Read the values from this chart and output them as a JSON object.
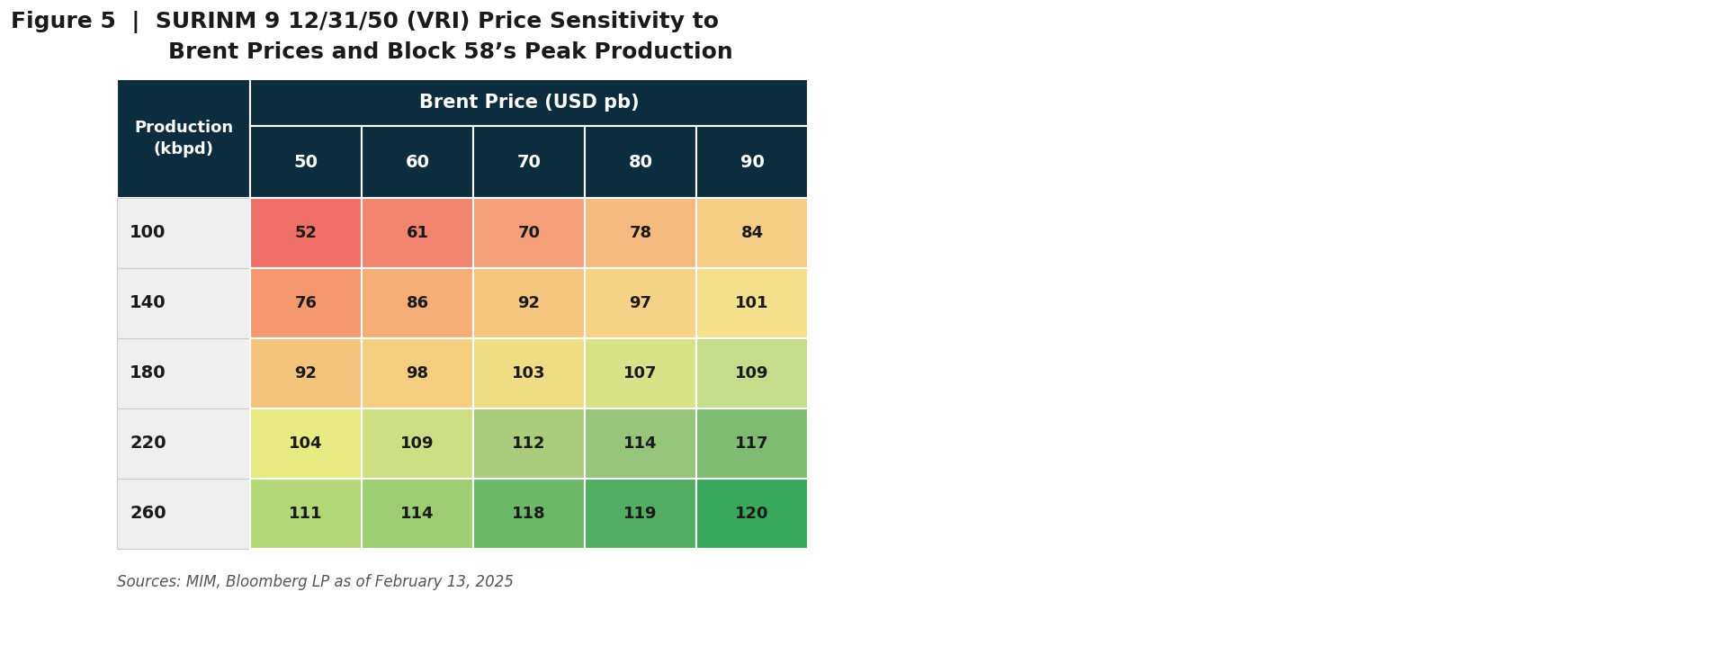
{
  "title_line1": "Figure 5  |  SURINM 9 12/31/50 (VRI) Price Sensitivity to",
  "title_line2": "                    Brent Prices and Block 58’s Peak Production",
  "header_main": "Brent Price (USD pb)",
  "col_header": "Production\n(kbpd)",
  "col_labels": [
    "50",
    "60",
    "70",
    "80",
    "90"
  ],
  "row_labels": [
    "100",
    "140",
    "180",
    "220",
    "260"
  ],
  "data": [
    [
      52,
      61,
      70,
      78,
      84
    ],
    [
      76,
      86,
      92,
      97,
      101
    ],
    [
      92,
      98,
      103,
      107,
      109
    ],
    [
      104,
      109,
      112,
      114,
      117
    ],
    [
      111,
      114,
      118,
      119,
      120
    ]
  ],
  "cell_colors": [
    [
      "#F07068",
      "#F28470",
      "#F5A07A",
      "#F5BA80",
      "#F5CC84"
    ],
    [
      "#F59870",
      "#F5AE78",
      "#F5C47E",
      "#F5D285",
      "#F5DF8C"
    ],
    [
      "#F5C47C",
      "#F5CE82",
      "#EEDD84",
      "#D8E288",
      "#C4DC8C"
    ],
    [
      "#E8EA82",
      "#CEDE84",
      "#AACC7C",
      "#96C47A",
      "#7EBC72"
    ],
    [
      "#B4D878",
      "#9ECE74",
      "#6CB868",
      "#52AE62",
      "#3AA85A"
    ]
  ],
  "header_bg": "#0C2D3D",
  "header_text_color": "#FFFFFF",
  "row_label_bg": "#EFEFEF",
  "row_label_text_color": "#1A1A1A",
  "footer": "Sources: MIM, Bloomberg LP as of February 13, 2025",
  "fig_bg": "#FFFFFF",
  "title_color": "#1A1A1A"
}
